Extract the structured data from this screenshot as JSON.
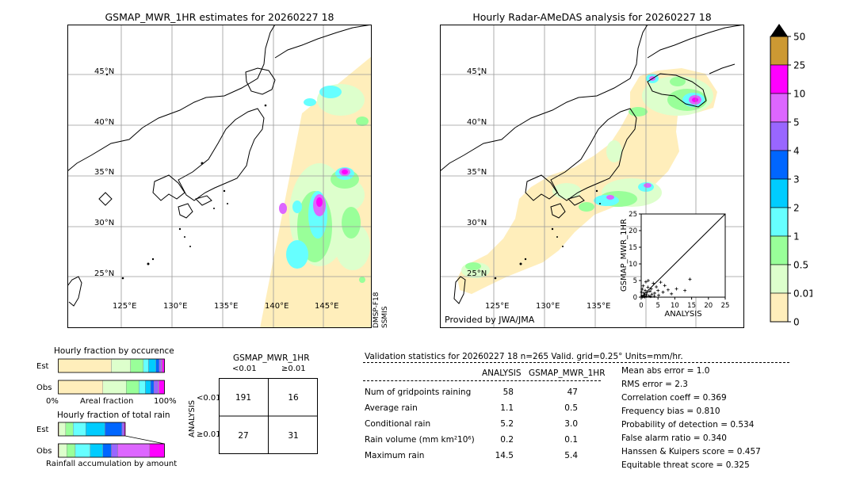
{
  "maps": {
    "left_title": "GSMAP_MWR_1HR estimates for 20260227 18",
    "right_title": "Hourly Radar-AMeDAS analysis for 20260227 18",
    "lat_labels": [
      "45°N",
      "40°N",
      "35°N",
      "30°N",
      "25°N"
    ],
    "lon_labels": [
      "125°E",
      "130°E",
      "135°E",
      "140°E",
      "145°E"
    ],
    "satellite_label_1": "DMSP-F18",
    "satellite_label_2": "SSMIS",
    "credit": "Provided by JWA/JMA"
  },
  "colorbar": {
    "levels": [
      "50",
      "25",
      "10",
      "5",
      "4",
      "3",
      "2",
      "1",
      "0.5",
      "0.01",
      "0"
    ],
    "colors": [
      "#000000",
      "#cc9933",
      "#ff00ff",
      "#dd66ff",
      "#9966ff",
      "#0066ff",
      "#00ccff",
      "#66ffff",
      "#99ff99",
      "#ddffcc",
      "#ffeebb"
    ]
  },
  "chart_data": [
    {
      "type": "scatter",
      "xlabel": "ANALYSIS",
      "ylabel": "GSMAP_MWR_1HR",
      "xlim": [
        0,
        25
      ],
      "ylim": [
        0,
        25
      ],
      "ticks": [
        "0",
        "5",
        "10",
        "15",
        "20",
        "25"
      ],
      "points": [
        [
          0.2,
          0.3
        ],
        [
          0.5,
          0.2
        ],
        [
          0.8,
          1.2
        ],
        [
          1.0,
          0.5
        ],
        [
          1.2,
          2.0
        ],
        [
          1.5,
          0.8
        ],
        [
          1.8,
          1.5
        ],
        [
          2.0,
          3.0
        ],
        [
          2.3,
          0.4
        ],
        [
          2.6,
          1.8
        ],
        [
          3.0,
          2.5
        ],
        [
          3.2,
          0.9
        ],
        [
          3.6,
          4.2
        ],
        [
          4.0,
          1.2
        ],
        [
          4.5,
          3.1
        ],
        [
          5.0,
          2.0
        ],
        [
          5.2,
          0.6
        ],
        [
          5.8,
          4.5
        ],
        [
          6.5,
          1.5
        ],
        [
          7.0,
          3.5
        ],
        [
          8.0,
          2.2
        ],
        [
          9.0,
          1.0
        ],
        [
          10.5,
          2.5
        ],
        [
          13.0,
          2.0
        ],
        [
          14.5,
          5.4
        ],
        [
          0.1,
          1.5
        ],
        [
          0.3,
          2.4
        ],
        [
          0.6,
          3.4
        ],
        [
          1.4,
          4.6
        ],
        [
          2.1,
          5.0
        ],
        [
          0.4,
          0.1
        ],
        [
          0.9,
          0.2
        ],
        [
          1.1,
          0.1
        ],
        [
          1.6,
          0.3
        ],
        [
          2.8,
          0.2
        ],
        [
          3.9,
          0.3
        ]
      ]
    },
    {
      "type": "bar",
      "title": "Hourly fraction by occurence",
      "rows": [
        "Est",
        "Obs"
      ],
      "xlabel_left": "0%",
      "xlabel_mid": "Areal fraction",
      "xlabel_right": "100%",
      "series": [
        {
          "row": "Est",
          "values": [
            0.5,
            0.18,
            0.12,
            0.05,
            0.07,
            0.03,
            0.02,
            0.01,
            0.02
          ]
        },
        {
          "row": "Obs",
          "values": [
            0.42,
            0.22,
            0.12,
            0.06,
            0.05,
            0.03,
            0.04,
            0.01,
            0.05
          ]
        }
      ],
      "colors": [
        "#ffeebb",
        "#ddffcc",
        "#99ff99",
        "#66ffff",
        "#00ccff",
        "#0066ff",
        "#9966ff",
        "#dd66ff",
        "#ff00ff"
      ]
    },
    {
      "type": "bar",
      "title": "Hourly fraction of total rain",
      "rows": [
        "Est",
        "Obs"
      ],
      "xlabel_mid": "Rainfall accumulation by amount",
      "series": [
        {
          "row": "Est",
          "values": [
            0.01,
            0.06,
            0.07,
            0.12,
            0.18,
            0.16,
            0.02,
            0.0,
            0.01
          ]
        },
        {
          "row": "Obs",
          "values": [
            0.01,
            0.07,
            0.08,
            0.14,
            0.12,
            0.08,
            0.06,
            0.3,
            0.14
          ]
        }
      ],
      "colors": [
        "#ffeebb",
        "#ddffcc",
        "#99ff99",
        "#66ffff",
        "#00ccff",
        "#0066ff",
        "#9966ff",
        "#dd66ff",
        "#ff00ff"
      ]
    },
    {
      "type": "table",
      "title": "GSMAP_MWR_1HR",
      "col_labels": [
        "<0.01",
        "≥0.01"
      ],
      "row_labels": [
        "<0.01",
        "≥0.01"
      ],
      "side_label": "ANALYSIS",
      "cells": [
        [
          "191",
          "16"
        ],
        [
          "27",
          "31"
        ]
      ]
    }
  ],
  "validation": {
    "header": "Validation statistics for 20260227 18  n=265 Valid. grid=0.25° Units=mm/hr.",
    "col_analysis": "ANALYSIS",
    "col_gsmap": "GSMAP_MWR_1HR",
    "rows": [
      {
        "label": "Num of gridpoints raining",
        "analysis": "58",
        "gsmap": "47"
      },
      {
        "label": "Average rain",
        "analysis": "1.1",
        "gsmap": "0.5"
      },
      {
        "label": "Conditional rain",
        "analysis": "5.2",
        "gsmap": "3.0"
      },
      {
        "label": "Rain volume (mm km²10⁶)",
        "analysis": "0.2",
        "gsmap": "0.1"
      },
      {
        "label": "Maximum rain",
        "analysis": "14.5",
        "gsmap": "5.4"
      }
    ],
    "scores": [
      "Mean abs error =    1.0",
      "RMS error =    2.3",
      "Correlation coeff =  0.369",
      "Frequency bias =  0.810",
      "Probability of detection =  0.534",
      "False alarm ratio =  0.340",
      "Hanssen & Kuipers score =  0.457",
      "Equitable threat score =  0.325"
    ]
  }
}
